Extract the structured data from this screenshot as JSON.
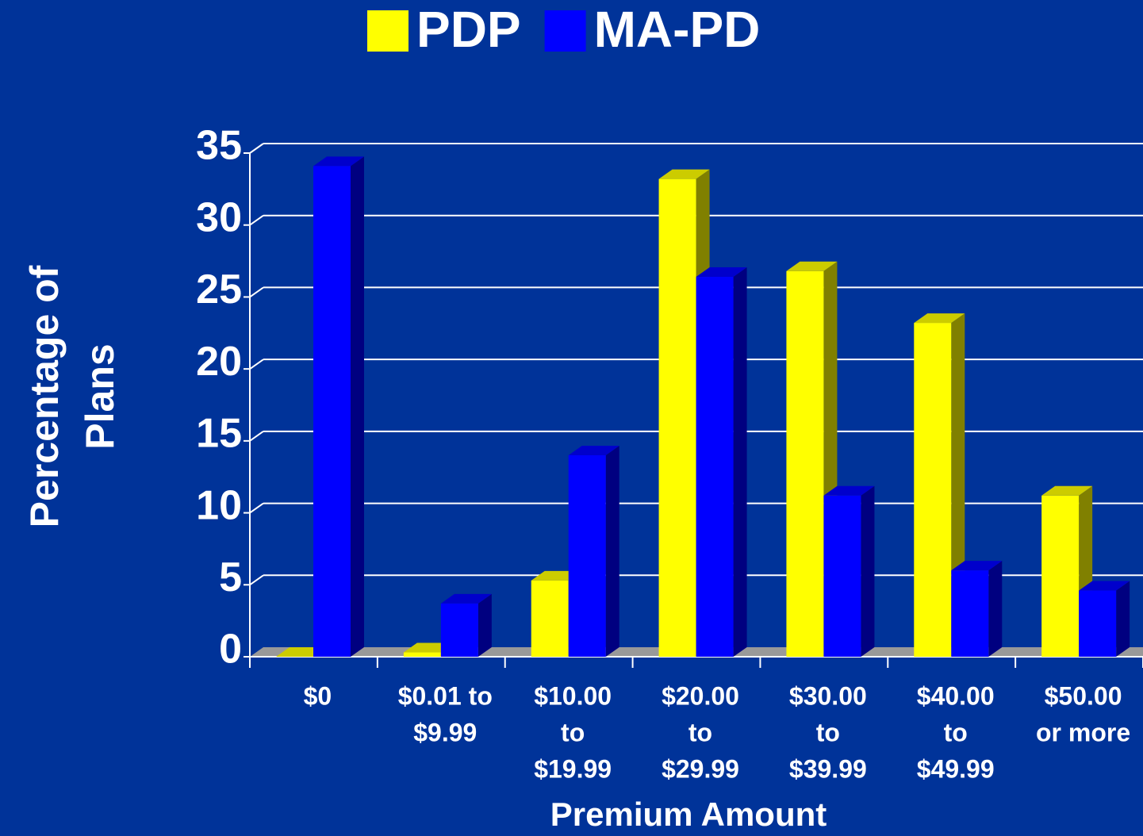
{
  "chart_data": {
    "type": "bar3d",
    "categories": [
      [
        "$0"
      ],
      [
        "$0.01 to",
        "$9.99"
      ],
      [
        "$10.00",
        "to",
        "$19.99"
      ],
      [
        "$20.00",
        "to",
        "$29.99"
      ],
      [
        "$30.00",
        "to",
        "$39.99"
      ],
      [
        "$40.00",
        "to",
        "$49.99"
      ],
      [
        "$50.00",
        "or more"
      ]
    ],
    "series": [
      {
        "name": "PDP",
        "color": "#ffff00",
        "values": [
          0,
          0.3,
          5.3,
          33.2,
          26.8,
          23.2,
          11.2
        ]
      },
      {
        "name": "MA-PD",
        "color": "#0000ff",
        "values": [
          34.1,
          3.7,
          14,
          26.4,
          11.2,
          6,
          4.6
        ]
      }
    ],
    "xlabel": "Premium Amount",
    "ylabel": [
      "Percentage of",
      "Plans"
    ],
    "ylim": [
      0,
      35
    ],
    "yticks": [
      0,
      5,
      10,
      15,
      20,
      25,
      30,
      35
    ],
    "grid": true
  }
}
